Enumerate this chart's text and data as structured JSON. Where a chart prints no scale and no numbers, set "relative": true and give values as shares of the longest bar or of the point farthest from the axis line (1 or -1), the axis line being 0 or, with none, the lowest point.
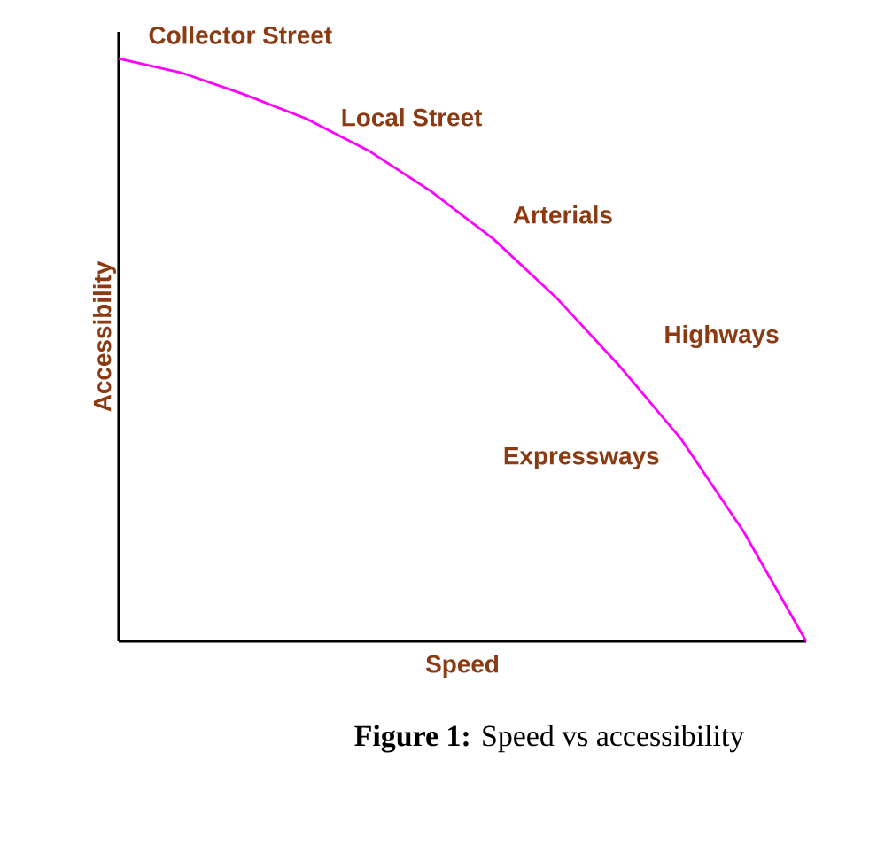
{
  "chart_data": {
    "type": "line",
    "relative": true,
    "xlabel": "Speed",
    "ylabel": "Accessibility",
    "color": "#ff00ff",
    "categories": [
      null,
      null,
      null,
      null,
      null,
      null,
      null,
      null,
      null,
      null,
      null,
      null
    ],
    "values": [
      1,
      0.976,
      0.939,
      0.897,
      0.842,
      0.772,
      0.69,
      0.59,
      0.474,
      0.347,
      0.188,
      0
    ],
    "annotations": [
      "Collector Street",
      "Local Street",
      "Arterials",
      "Highways",
      "Expressways",
      "**Figure 1:** Speed vs accessibility"
    ]
  }
}
